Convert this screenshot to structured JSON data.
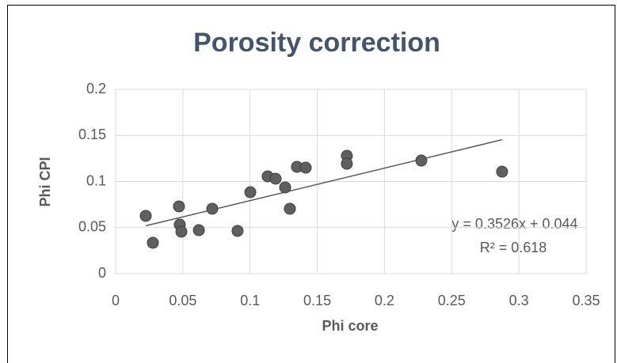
{
  "chart_data": {
    "type": "scatter",
    "title": "Porosity correction",
    "x_label": "Phi core",
    "y_label": "Phi CPI",
    "x": [
      0.0224,
      0.0277,
      0.0471,
      0.0477,
      0.0489,
      0.0619,
      0.0719,
      0.0907,
      0.1002,
      0.1131,
      0.119,
      0.1261,
      0.1296,
      0.1349,
      0.1414,
      0.172,
      0.172,
      0.2274,
      0.2875
    ],
    "values": [
      0.0627,
      0.0335,
      0.073,
      0.0532,
      0.0455,
      0.0472,
      0.0704,
      0.0464,
      0.0884,
      0.1056,
      0.103,
      0.0936,
      0.0704,
      0.1159,
      0.115,
      0.1279,
      0.1193,
      0.1227,
      0.1107
    ],
    "color": "#5f5f5f",
    "xlim": [
      0,
      0.35
    ],
    "xticks": [
      0,
      0.05,
      0.1,
      0.15,
      0.2,
      0.25,
      0.3,
      0.35
    ],
    "ylim": [
      0,
      0.2
    ],
    "yticks": [
      0,
      0.05,
      0.1,
      0.15,
      0.2
    ],
    "grid": true,
    "trendline": {
      "slope": 0.3526,
      "intercept": 0.044,
      "xrange": [
        0.0224,
        0.2875
      ]
    },
    "annotations": [
      "y = 0.3526x + 0.044",
      "R² = 0.618"
    ]
  }
}
